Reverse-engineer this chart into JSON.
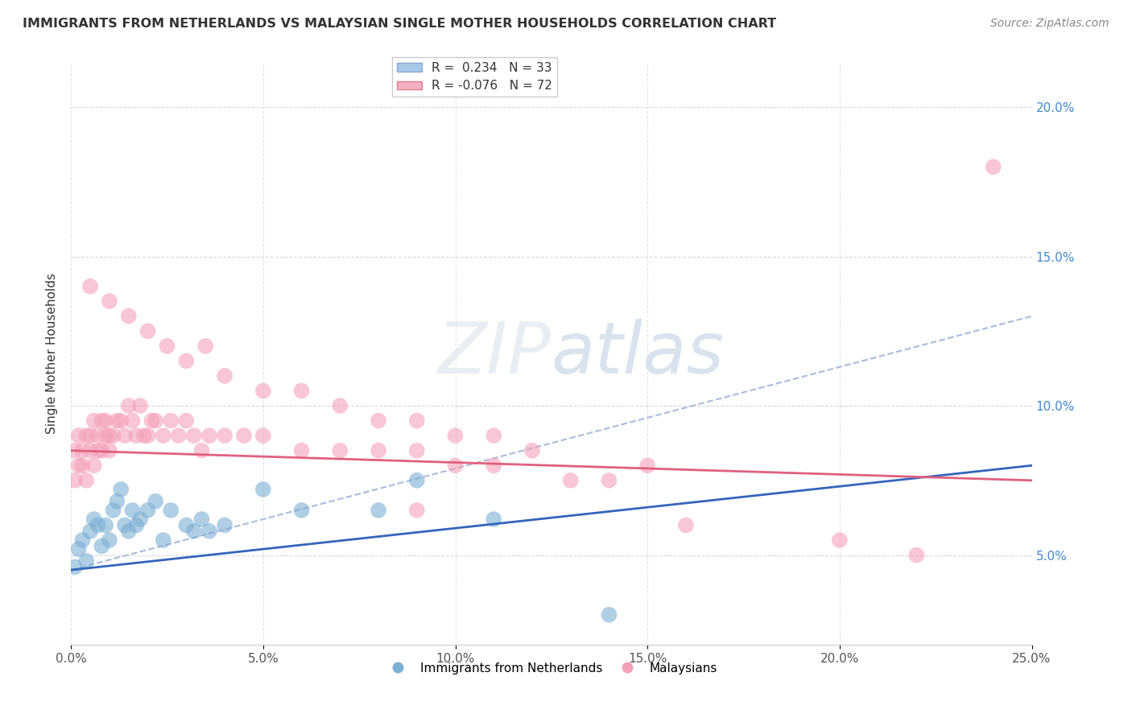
{
  "title": "IMMIGRANTS FROM NETHERLANDS VS MALAYSIAN SINGLE MOTHER HOUSEHOLDS CORRELATION CHART",
  "source": "Source: ZipAtlas.com",
  "ylabel": "Single Mother Households",
  "xlim": [
    0.0,
    0.25
  ],
  "ylim": [
    0.02,
    0.215
  ],
  "x_tick_vals": [
    0.0,
    0.05,
    0.1,
    0.15,
    0.2,
    0.25
  ],
  "y_tick_vals": [
    0.05,
    0.1,
    0.15,
    0.2
  ],
  "watermark": "ZIPatlas",
  "blue_color": "#7bafd4",
  "pink_color": "#f4a0b8",
  "blue_line_color": "#3366bb",
  "pink_line_color": "#e06080",
  "dashed_line_color": "#aabbdd",
  "legend_line1": "R =  0.234   N = 33",
  "legend_line2": "R = -0.076   N = 72",
  "legend_bottom1": "Immigrants from Netherlands",
  "legend_bottom2": "Malaysians",
  "nl_x": [
    0.001,
    0.002,
    0.003,
    0.004,
    0.005,
    0.006,
    0.007,
    0.008,
    0.009,
    0.01,
    0.011,
    0.012,
    0.013,
    0.014,
    0.015,
    0.016,
    0.017,
    0.018,
    0.02,
    0.022,
    0.024,
    0.026,
    0.03,
    0.032,
    0.034,
    0.036,
    0.04,
    0.05,
    0.06,
    0.08,
    0.09,
    0.11,
    0.14
  ],
  "nl_y": [
    0.046,
    0.052,
    0.055,
    0.048,
    0.058,
    0.062,
    0.06,
    0.053,
    0.06,
    0.055,
    0.065,
    0.068,
    0.072,
    0.06,
    0.058,
    0.065,
    0.06,
    0.062,
    0.065,
    0.068,
    0.055,
    0.065,
    0.06,
    0.058,
    0.062,
    0.058,
    0.06,
    0.072,
    0.065,
    0.065,
    0.075,
    0.062,
    0.03
  ],
  "my_x": [
    0.001,
    0.001,
    0.002,
    0.002,
    0.003,
    0.003,
    0.004,
    0.004,
    0.005,
    0.005,
    0.006,
    0.006,
    0.007,
    0.007,
    0.008,
    0.008,
    0.009,
    0.009,
    0.01,
    0.01,
    0.011,
    0.012,
    0.013,
    0.014,
    0.015,
    0.016,
    0.017,
    0.018,
    0.019,
    0.02,
    0.021,
    0.022,
    0.024,
    0.026,
    0.028,
    0.03,
    0.032,
    0.034,
    0.036,
    0.04,
    0.045,
    0.05,
    0.06,
    0.07,
    0.08,
    0.09,
    0.1,
    0.11,
    0.13,
    0.15,
    0.005,
    0.01,
    0.015,
    0.02,
    0.025,
    0.03,
    0.035,
    0.04,
    0.05,
    0.06,
    0.07,
    0.08,
    0.09,
    0.1,
    0.11,
    0.12,
    0.14,
    0.16,
    0.2,
    0.22,
    0.24,
    0.09
  ],
  "my_y": [
    0.085,
    0.075,
    0.08,
    0.09,
    0.085,
    0.08,
    0.09,
    0.075,
    0.085,
    0.09,
    0.095,
    0.08,
    0.09,
    0.085,
    0.095,
    0.085,
    0.09,
    0.095,
    0.085,
    0.09,
    0.09,
    0.095,
    0.095,
    0.09,
    0.1,
    0.095,
    0.09,
    0.1,
    0.09,
    0.09,
    0.095,
    0.095,
    0.09,
    0.095,
    0.09,
    0.095,
    0.09,
    0.085,
    0.09,
    0.09,
    0.09,
    0.09,
    0.085,
    0.085,
    0.085,
    0.085,
    0.08,
    0.08,
    0.075,
    0.08,
    0.14,
    0.135,
    0.13,
    0.125,
    0.12,
    0.115,
    0.12,
    0.11,
    0.105,
    0.105,
    0.1,
    0.095,
    0.095,
    0.09,
    0.09,
    0.085,
    0.075,
    0.06,
    0.055,
    0.05,
    0.18,
    0.065
  ]
}
